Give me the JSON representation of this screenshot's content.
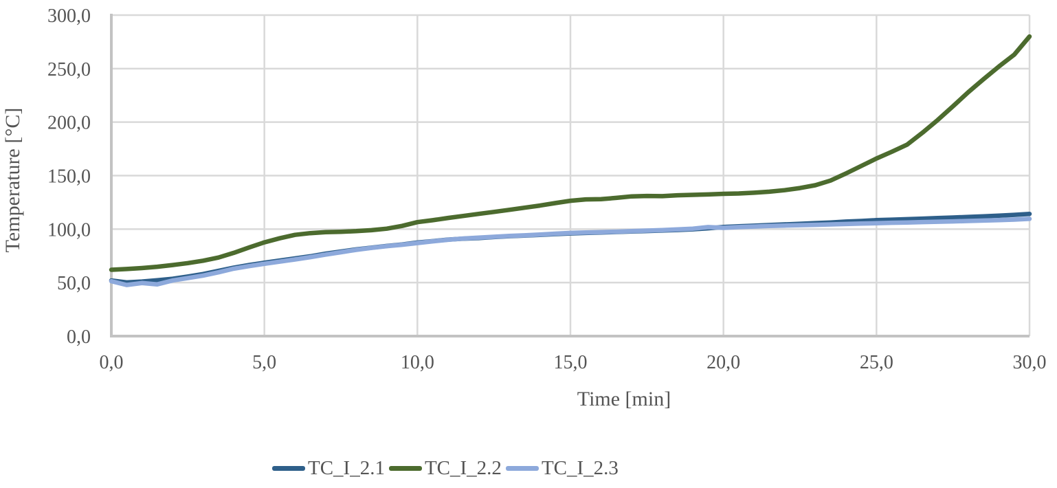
{
  "chart_data": {
    "type": "line",
    "title": "",
    "xlabel": "Time [min]",
    "ylabel": "Temperature [°C]",
    "xlim": [
      0,
      30
    ],
    "ylim": [
      0,
      300
    ],
    "grid": true,
    "legend_position": "bottom",
    "xtick_labels": [
      "0,0",
      "5,0",
      "10,0",
      "15,0",
      "20,0",
      "25,0",
      "30,0"
    ],
    "ytick_labels": [
      "0,0",
      "50,0",
      "100,0",
      "150,0",
      "200,0",
      "250,0",
      "300,0"
    ],
    "x": [
      0,
      0.5,
      1,
      1.5,
      2,
      2.5,
      3,
      3.5,
      4,
      4.5,
      5,
      5.5,
      6,
      6.5,
      7,
      7.5,
      8,
      8.5,
      9,
      9.5,
      10,
      10.5,
      11,
      11.5,
      12,
      12.5,
      13,
      13.5,
      14,
      14.5,
      15,
      15.5,
      16,
      16.5,
      17,
      17.5,
      18,
      18.5,
      19,
      19.5,
      20,
      20.5,
      21,
      21.5,
      22,
      22.5,
      23,
      23.5,
      24,
      24.5,
      25,
      25.5,
      26,
      26.5,
      27,
      27.5,
      28,
      28.5,
      29,
      29.5,
      30
    ],
    "series": [
      {
        "name": "TC_I_2.1",
        "color": "#2E5F8A",
        "values": [
          52,
          50.2,
          51,
          52.2,
          53.6,
          55.6,
          58,
          61,
          64,
          66.4,
          68.6,
          70.6,
          72.6,
          74.6,
          77,
          79,
          81,
          82.6,
          84.2,
          85.6,
          87.4,
          88.8,
          90.2,
          91,
          91.6,
          92.6,
          93.4,
          94,
          94.6,
          95.3,
          96,
          96.4,
          96.8,
          97.3,
          97.8,
          98.2,
          98.7,
          99.2,
          99.8,
          100.8,
          102,
          102.6,
          103.2,
          103.8,
          104.4,
          105,
          105.6,
          106.2,
          107,
          107.6,
          108.4,
          108.8,
          109.3,
          109.8,
          110.3,
          110.8,
          111.4,
          112,
          112.6,
          113.3,
          114.2
        ]
      },
      {
        "name": "TC_I_2.2",
        "color": "#4C6B2E",
        "values": [
          62,
          62.7,
          63.6,
          64.8,
          66.4,
          68.2,
          70.5,
          73.4,
          77.8,
          82.8,
          87.6,
          91.4,
          94.6,
          96.2,
          97.2,
          97.5,
          98.1,
          99,
          100.4,
          103,
          106.5,
          108.3,
          110.4,
          112.3,
          114.2,
          116.1,
          118,
          120,
          122,
          124.3,
          126.5,
          127.8,
          128,
          129.2,
          130.6,
          131,
          130.8,
          131.6,
          132,
          132.4,
          133,
          133.3,
          134,
          135,
          136.4,
          138.4,
          141,
          145.4,
          152,
          159,
          166,
          172.3,
          179,
          190,
          202,
          214.8,
          228,
          240.2,
          252,
          263,
          280
        ]
      },
      {
        "name": "TC_I_2.3",
        "color": "#8DA9DB",
        "values": [
          51.3,
          47.8,
          49.6,
          48.4,
          52,
          54.2,
          56.6,
          59.6,
          63,
          65.4,
          67.6,
          69.6,
          71.6,
          73.8,
          76.2,
          78.4,
          80.6,
          82.4,
          84,
          85.4,
          87,
          88.6,
          90,
          91.2,
          92,
          92.8,
          93.6,
          94.2,
          94.9,
          95.7,
          96.4,
          96.9,
          97.2,
          97.6,
          98.1,
          98.6,
          99.1,
          99.7,
          100.4,
          101.9,
          101.2,
          101.9,
          102.4,
          102.9,
          103.3,
          103.7,
          104,
          104.4,
          104.8,
          105.2,
          105.5,
          105.9,
          106.2,
          106.6,
          106.9,
          107.2,
          107.6,
          108,
          108.4,
          108.9,
          109.6
        ]
      }
    ]
  },
  "colors": {
    "grid": "#D9D9D9",
    "axis": "#C3C3C3",
    "text": "#545454"
  }
}
